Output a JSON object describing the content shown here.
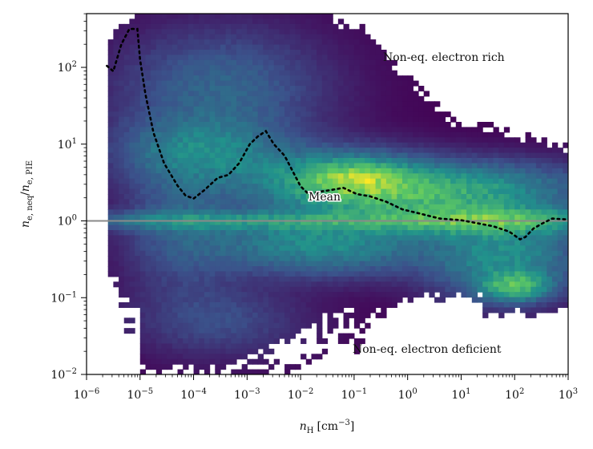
{
  "chart_data": {
    "type": "heatmap",
    "title": "",
    "xlabel": {
      "main": "n",
      "sub": "H",
      "unit": "[cm",
      "unit_exp": "−3",
      "unit_close": "]"
    },
    "ylabel": {
      "main1": "n",
      "sub1": "e, neq",
      "slash": "/",
      "main2": "n",
      "sub2": "e, PIE"
    },
    "xscale": "log10",
    "yscale": "log10",
    "xlim_exp": [
      -6,
      3
    ],
    "ylim_exp": [
      -2,
      2.7
    ],
    "xticks": [
      {
        "exp": -6,
        "base": "10",
        "sup": "−6"
      },
      {
        "exp": -5,
        "base": "10",
        "sup": "−5"
      },
      {
        "exp": -4,
        "base": "10",
        "sup": "−4"
      },
      {
        "exp": -3,
        "base": "10",
        "sup": "−3"
      },
      {
        "exp": -2,
        "base": "10",
        "sup": "−2"
      },
      {
        "exp": -1,
        "base": "10",
        "sup": "−1"
      },
      {
        "exp": 0,
        "base": "10",
        "sup": "0"
      },
      {
        "exp": 1,
        "base": "10",
        "sup": "1"
      },
      {
        "exp": 2,
        "base": "10",
        "sup": "2"
      },
      {
        "exp": 3,
        "base": "10",
        "sup": "3"
      }
    ],
    "yticks": [
      {
        "exp": -2,
        "base": "10",
        "sup": "−2"
      },
      {
        "exp": -1,
        "base": "10",
        "sup": "−1"
      },
      {
        "exp": 0,
        "base": "10",
        "sup": "0"
      },
      {
        "exp": 1,
        "base": "10",
        "sup": "1"
      },
      {
        "exp": 2,
        "base": "10",
        "sup": "2"
      }
    ],
    "reference_line": {
      "y_value": 1.0,
      "color": "#8a8a8a"
    },
    "mean_curve": {
      "name": "Mean",
      "style": "dotted",
      "color": "#000000",
      "points": [
        [
          -5.62,
          2.02
        ],
        [
          -5.5,
          1.95
        ],
        [
          -5.35,
          2.3
        ],
        [
          -5.2,
          2.5
        ],
        [
          -5.05,
          2.5
        ],
        [
          -5.0,
          2.1
        ],
        [
          -4.9,
          1.65
        ],
        [
          -4.75,
          1.15
        ],
        [
          -4.55,
          0.75
        ],
        [
          -4.3,
          0.46
        ],
        [
          -4.15,
          0.33
        ],
        [
          -4.0,
          0.29
        ],
        [
          -3.8,
          0.4
        ],
        [
          -3.55,
          0.56
        ],
        [
          -3.35,
          0.6
        ],
        [
          -3.15,
          0.75
        ],
        [
          -2.95,
          1.0
        ],
        [
          -2.8,
          1.1
        ],
        [
          -2.65,
          1.17
        ],
        [
          -2.5,
          1.0
        ],
        [
          -2.3,
          0.85
        ],
        [
          -2.15,
          0.65
        ],
        [
          -2.0,
          0.45
        ],
        [
          -1.85,
          0.35
        ],
        [
          -1.65,
          0.38
        ],
        [
          -1.45,
          0.4
        ],
        [
          -1.2,
          0.43
        ],
        [
          -0.95,
          0.35
        ],
        [
          -0.7,
          0.32
        ],
        [
          -0.4,
          0.25
        ],
        [
          -0.1,
          0.15
        ],
        [
          0.2,
          0.1
        ],
        [
          0.6,
          0.03
        ],
        [
          1.0,
          0.01
        ],
        [
          1.3,
          -0.03
        ],
        [
          1.6,
          -0.07
        ],
        [
          1.9,
          -0.14
        ],
        [
          2.1,
          -0.24
        ],
        [
          2.2,
          -0.21
        ],
        [
          2.35,
          -0.1
        ],
        [
          2.5,
          -0.04
        ],
        [
          2.7,
          0.03
        ],
        [
          2.95,
          0.02
        ]
      ]
    },
    "colormap": "viridis",
    "colormap_stops": [
      "#440154",
      "#3b528b",
      "#21918c",
      "#5ec962",
      "#fde725"
    ],
    "annotations": {
      "rich": "Non-eq. electron rich",
      "deficient": "Non-eq. electron deficient",
      "mean": "Mean"
    }
  }
}
